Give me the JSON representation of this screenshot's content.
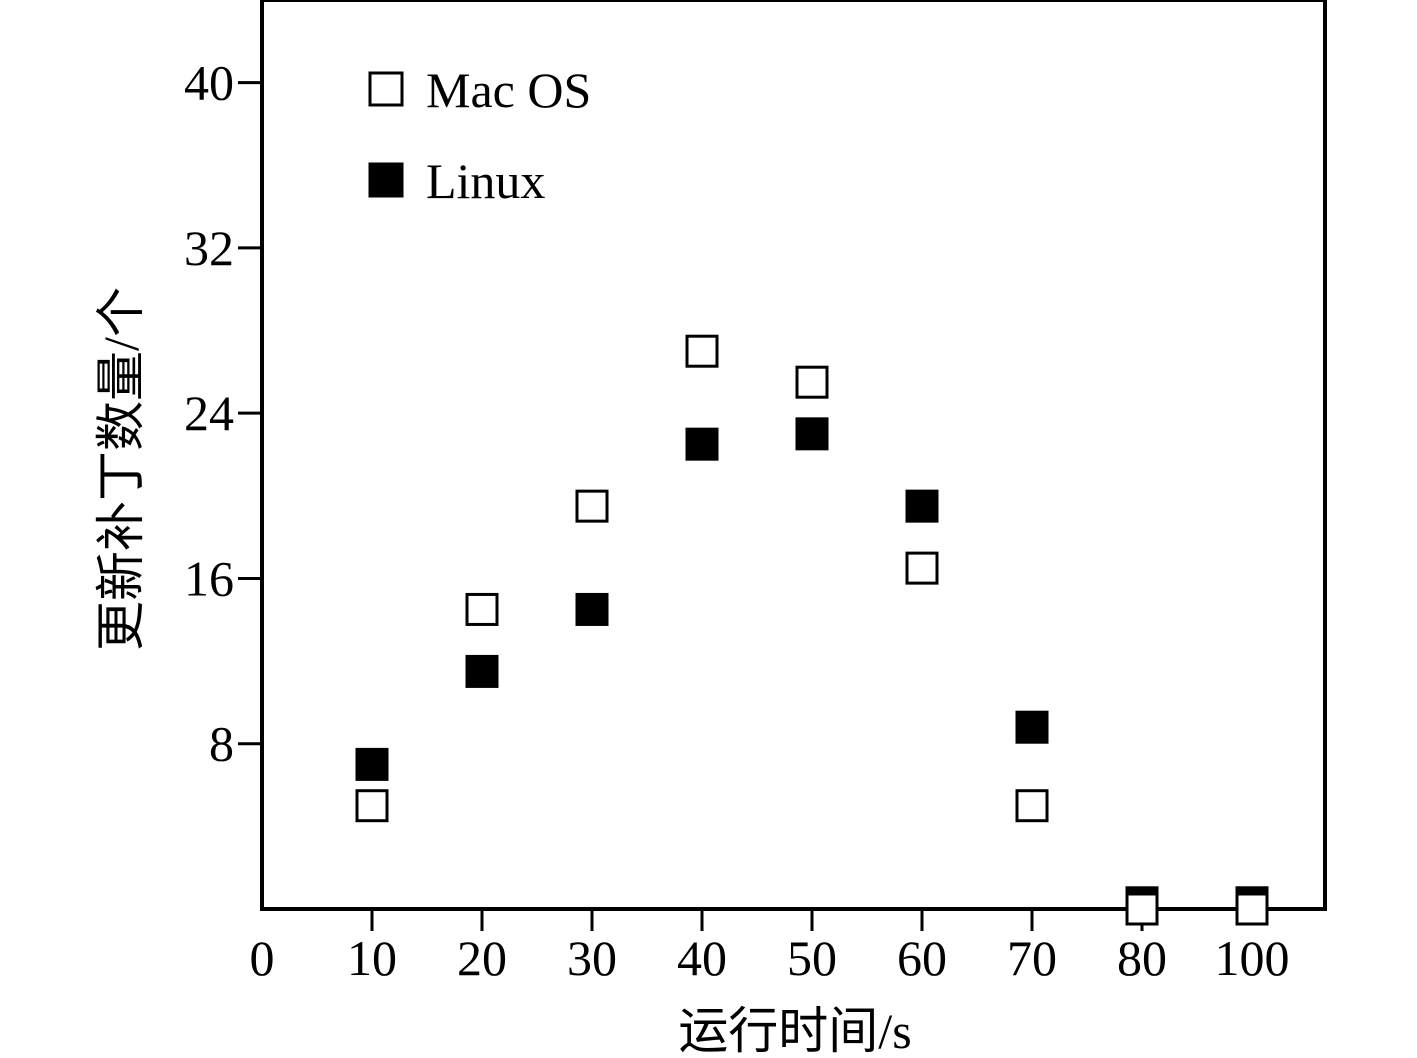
{
  "chart_data": {
    "type": "scatter",
    "title": "",
    "xlabel": "运行时间/s",
    "ylabel": "更新补丁数量/个",
    "categories": [
      "10",
      "20",
      "30",
      "40",
      "50",
      "60",
      "70",
      "80",
      "100"
    ],
    "x_tick_labels": [
      "0",
      "10",
      "20",
      "30",
      "40",
      "50",
      "60",
      "70",
      "80",
      "100"
    ],
    "y_ticks": [
      8,
      16,
      24,
      32,
      40
    ],
    "ylim": [
      0,
      44
    ],
    "grid": false,
    "legend_position": "top-left",
    "series": [
      {
        "name": "Mac OS",
        "marker": "hollow-square",
        "color": "#000000",
        "values": [
          5,
          14.5,
          19.5,
          27,
          25.5,
          16.5,
          5,
          0,
          0
        ]
      },
      {
        "name": "Linux",
        "marker": "filled-square",
        "color": "#000000",
        "values": [
          7,
          11.5,
          14.5,
          22.5,
          23,
          19.5,
          8.8,
          0.3,
          0.3
        ]
      }
    ]
  }
}
